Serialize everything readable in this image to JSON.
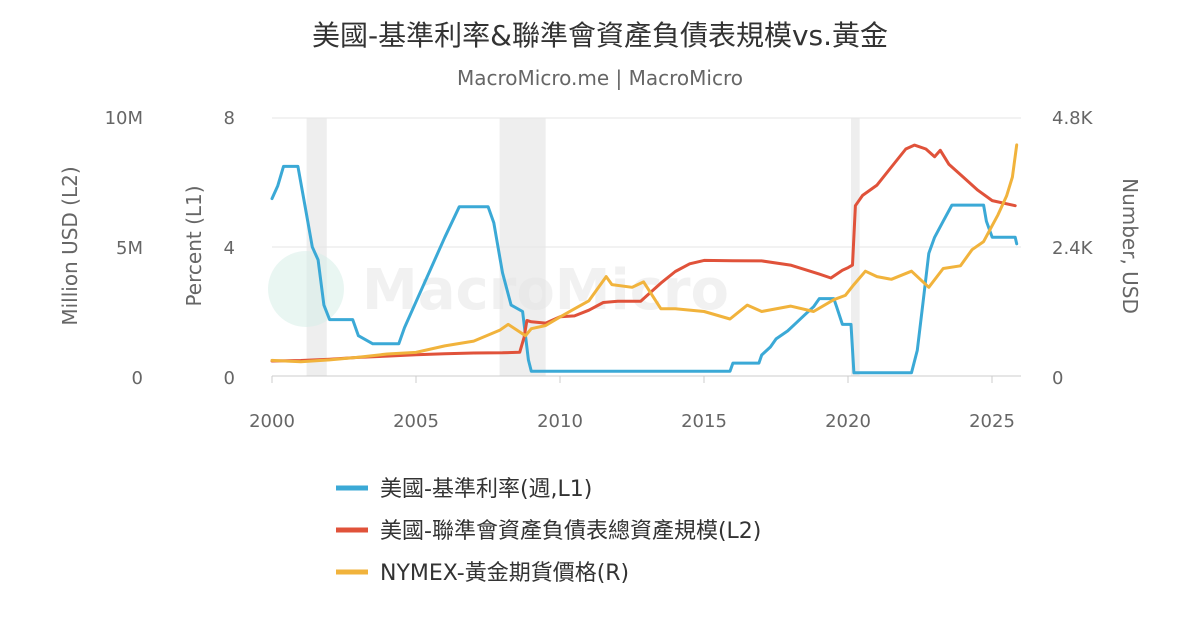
{
  "chart_data": {
    "type": "line",
    "title": "美國-基準利率&聯準會資產負債表規模vs.黃金",
    "subtitle": "MacroMicro.me | MacroMicro",
    "watermark": "MacroMicro",
    "colors": {
      "rate": "#3BA9D6",
      "balance": "#E0523A",
      "gold": "#F1B33C"
    },
    "x_axis": {
      "range": [
        2000,
        2026
      ],
      "ticks": [
        "2000",
        "2005",
        "2010",
        "2015",
        "2020",
        "2025"
      ]
    },
    "axes": {
      "L1": {
        "title": "Percent (L1)",
        "range": [
          0,
          8
        ],
        "ticks": [
          "0",
          "4",
          "8"
        ]
      },
      "L2": {
        "title": "Million USD (L2)",
        "range": [
          0,
          10000000
        ],
        "ticks": [
          "0",
          "5M",
          "10M"
        ]
      },
      "R": {
        "title": "Number, USD",
        "range": [
          0,
          4800
        ],
        "ticks": [
          "0",
          "2.4K",
          "4.8K"
        ]
      }
    },
    "recessions": [
      [
        2001.2,
        2001.9
      ],
      [
        2007.9,
        2009.5
      ],
      [
        2020.1,
        2020.4
      ]
    ],
    "series": [
      {
        "name": "美國-基準利率(週,L1)",
        "key": "rate",
        "axis": "L1",
        "points": [
          [
            2000.0,
            5.5
          ],
          [
            2000.2,
            5.9
          ],
          [
            2000.4,
            6.5
          ],
          [
            2000.6,
            6.5
          ],
          [
            2000.9,
            6.5
          ],
          [
            2001.0,
            6.0
          ],
          [
            2001.2,
            5.0
          ],
          [
            2001.4,
            4.0
          ],
          [
            2001.6,
            3.6
          ],
          [
            2001.8,
            2.2
          ],
          [
            2002.0,
            1.75
          ],
          [
            2002.8,
            1.75
          ],
          [
            2003.0,
            1.25
          ],
          [
            2003.5,
            1.0
          ],
          [
            2004.4,
            1.0
          ],
          [
            2004.6,
            1.5
          ],
          [
            2005.0,
            2.3
          ],
          [
            2005.5,
            3.3
          ],
          [
            2006.0,
            4.3
          ],
          [
            2006.5,
            5.25
          ],
          [
            2007.5,
            5.25
          ],
          [
            2007.7,
            4.75
          ],
          [
            2008.0,
            3.2
          ],
          [
            2008.3,
            2.2
          ],
          [
            2008.7,
            2.0
          ],
          [
            2008.9,
            0.5
          ],
          [
            2009.0,
            0.15
          ],
          [
            2015.9,
            0.15
          ],
          [
            2016.0,
            0.4
          ],
          [
            2016.9,
            0.4
          ],
          [
            2017.0,
            0.65
          ],
          [
            2017.3,
            0.9
          ],
          [
            2017.5,
            1.15
          ],
          [
            2017.9,
            1.4
          ],
          [
            2018.2,
            1.65
          ],
          [
            2018.5,
            1.9
          ],
          [
            2018.8,
            2.15
          ],
          [
            2019.0,
            2.4
          ],
          [
            2019.5,
            2.4
          ],
          [
            2019.6,
            2.15
          ],
          [
            2019.8,
            1.6
          ],
          [
            2020.1,
            1.6
          ],
          [
            2020.2,
            0.1
          ],
          [
            2022.2,
            0.1
          ],
          [
            2022.4,
            0.8
          ],
          [
            2022.6,
            2.3
          ],
          [
            2022.8,
            3.8
          ],
          [
            2023.0,
            4.3
          ],
          [
            2023.3,
            4.8
          ],
          [
            2023.6,
            5.3
          ],
          [
            2024.7,
            5.3
          ],
          [
            2024.8,
            4.8
          ],
          [
            2025.0,
            4.3
          ],
          [
            2025.8,
            4.3
          ],
          [
            2025.85,
            4.1
          ]
        ]
      },
      {
        "name": "美國-聯準會資產負債表總資產規模(L2)",
        "key": "balance",
        "axis": "L2",
        "points": [
          [
            2000.0,
            580000
          ],
          [
            2001.0,
            600000
          ],
          [
            2002.0,
            650000
          ],
          [
            2003.0,
            720000
          ],
          [
            2004.0,
            770000
          ],
          [
            2005.0,
            820000
          ],
          [
            2006.0,
            860000
          ],
          [
            2007.0,
            890000
          ],
          [
            2008.0,
            900000
          ],
          [
            2008.6,
            920000
          ],
          [
            2008.75,
            1500000
          ],
          [
            2008.85,
            2150000
          ],
          [
            2009.0,
            2100000
          ],
          [
            2009.5,
            2050000
          ],
          [
            2010.0,
            2300000
          ],
          [
            2010.5,
            2330000
          ],
          [
            2011.0,
            2550000
          ],
          [
            2011.5,
            2850000
          ],
          [
            2012.0,
            2900000
          ],
          [
            2012.8,
            2900000
          ],
          [
            2013.0,
            3100000
          ],
          [
            2013.5,
            3600000
          ],
          [
            2014.0,
            4050000
          ],
          [
            2014.5,
            4350000
          ],
          [
            2015.0,
            4480000
          ],
          [
            2016.0,
            4470000
          ],
          [
            2017.0,
            4460000
          ],
          [
            2018.0,
            4300000
          ],
          [
            2019.0,
            3950000
          ],
          [
            2019.4,
            3800000
          ],
          [
            2019.8,
            4100000
          ],
          [
            2020.0,
            4200000
          ],
          [
            2020.15,
            4300000
          ],
          [
            2020.25,
            6600000
          ],
          [
            2020.5,
            7000000
          ],
          [
            2021.0,
            7400000
          ],
          [
            2021.5,
            8100000
          ],
          [
            2022.0,
            8800000
          ],
          [
            2022.3,
            8950000
          ],
          [
            2022.7,
            8800000
          ],
          [
            2023.0,
            8500000
          ],
          [
            2023.2,
            8750000
          ],
          [
            2023.5,
            8200000
          ],
          [
            2024.0,
            7700000
          ],
          [
            2024.5,
            7200000
          ],
          [
            2025.0,
            6800000
          ],
          [
            2025.8,
            6600000
          ]
        ]
      },
      {
        "name": "NYMEX-黃金期貨價格(R)",
        "key": "gold",
        "axis": "R",
        "points": [
          [
            2000.0,
            290
          ],
          [
            2001.0,
            265
          ],
          [
            2002.0,
            300
          ],
          [
            2003.0,
            350
          ],
          [
            2004.0,
            410
          ],
          [
            2005.0,
            440
          ],
          [
            2006.0,
            560
          ],
          [
            2007.0,
            650
          ],
          [
            2007.9,
            850
          ],
          [
            2008.2,
            960
          ],
          [
            2008.8,
            750
          ],
          [
            2009.0,
            880
          ],
          [
            2009.5,
            940
          ],
          [
            2010.0,
            1100
          ],
          [
            2010.5,
            1250
          ],
          [
            2011.0,
            1400
          ],
          [
            2011.6,
            1850
          ],
          [
            2011.8,
            1700
          ],
          [
            2012.5,
            1650
          ],
          [
            2012.9,
            1750
          ],
          [
            2013.5,
            1250
          ],
          [
            2014.0,
            1250
          ],
          [
            2015.0,
            1200
          ],
          [
            2015.9,
            1060
          ],
          [
            2016.5,
            1320
          ],
          [
            2017.0,
            1200
          ],
          [
            2018.0,
            1300
          ],
          [
            2018.8,
            1200
          ],
          [
            2019.5,
            1420
          ],
          [
            2019.9,
            1500
          ],
          [
            2020.2,
            1700
          ],
          [
            2020.6,
            1950
          ],
          [
            2021.0,
            1850
          ],
          [
            2021.5,
            1800
          ],
          [
            2022.2,
            1950
          ],
          [
            2022.8,
            1650
          ],
          [
            2023.3,
            2000
          ],
          [
            2023.9,
            2050
          ],
          [
            2024.3,
            2350
          ],
          [
            2024.7,
            2500
          ],
          [
            2024.9,
            2700
          ],
          [
            2025.2,
            3000
          ],
          [
            2025.5,
            3350
          ],
          [
            2025.7,
            3700
          ],
          [
            2025.85,
            4300
          ]
        ]
      }
    ]
  }
}
